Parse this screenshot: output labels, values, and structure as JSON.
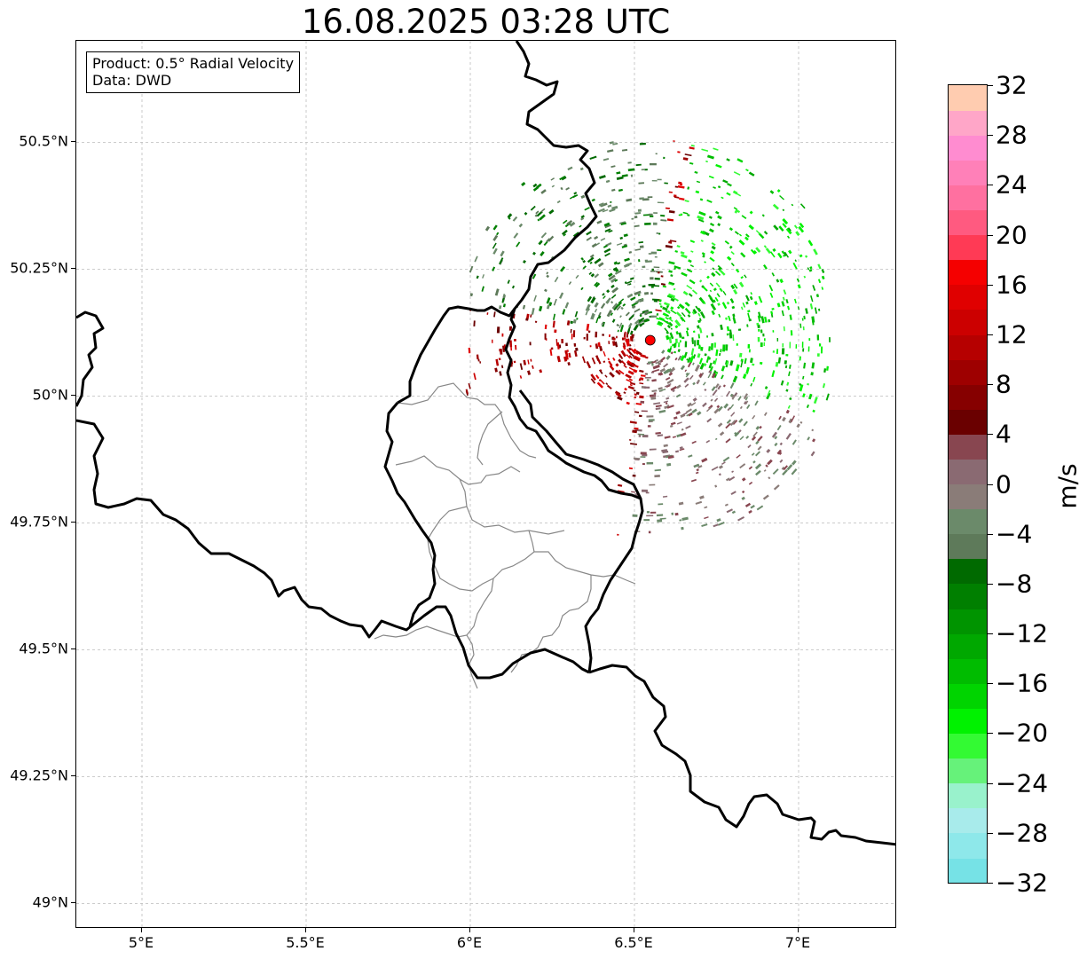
{
  "map": {
    "title": "16.08.2025 03:28 UTC",
    "info": {
      "product": "Product: 0.5° Radial Velocity",
      "data": "Data: DWD"
    },
    "extent": {
      "lon_min": 4.8,
      "lon_max": 7.3,
      "lat_min": 48.95,
      "lat_max": 50.7
    },
    "x_ticks": [
      {
        "lon": 5.0,
        "label": "5°E"
      },
      {
        "lon": 5.5,
        "label": "5.5°E"
      },
      {
        "lon": 6.0,
        "label": "6°E"
      },
      {
        "lon": 6.5,
        "label": "6.5°E"
      },
      {
        "lon": 7.0,
        "label": "7°E"
      }
    ],
    "y_ticks": [
      {
        "lat": 50.5,
        "label": "50.5°N"
      },
      {
        "lat": 50.25,
        "label": "50.25°N"
      },
      {
        "lat": 50.0,
        "label": "50°N"
      },
      {
        "lat": 49.75,
        "label": "49.75°N"
      },
      {
        "lat": 49.5,
        "label": "49.5°N"
      },
      {
        "lat": 49.25,
        "label": "49.25°N"
      },
      {
        "lat": 49.0,
        "label": "49°N"
      }
    ],
    "radar_site": {
      "lon": 6.548,
      "lat": 50.11,
      "color": "#ff0000"
    },
    "gridlines": true
  },
  "colorbar": {
    "unit": "m/s",
    "min": -32,
    "max": 32,
    "step": 2,
    "tick_labels": [
      "32",
      "28",
      "24",
      "20",
      "16",
      "12",
      "8",
      "4",
      "0",
      "−4",
      "−8",
      "−12",
      "−16",
      "−20",
      "−24",
      "−28",
      "−32"
    ],
    "colors_low_to_high": [
      "#76e2e6",
      "#8ee8ea",
      "#a8ebeb",
      "#99f2cc",
      "#66f27a",
      "#33fa33",
      "#00f200",
      "#00d400",
      "#00bc00",
      "#00a800",
      "#009400",
      "#007f00",
      "#006a00",
      "#5e7a5a",
      "#6b8a6a",
      "#8a7c78",
      "#8a6a72",
      "#884650",
      "#6a0000",
      "#860000",
      "#9e0000",
      "#b60000",
      "#cc0000",
      "#e00000",
      "#f50000",
      "#ff3a55",
      "#ff5a80",
      "#ff70a0",
      "#ff80b8",
      "#ff8cd0",
      "#ffa6c8",
      "#ffccb0"
    ]
  }
}
